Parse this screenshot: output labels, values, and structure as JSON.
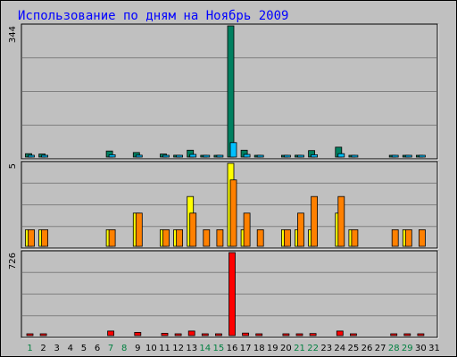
{
  "chart_data": {
    "type": "bar",
    "title": "Использование по дням на Ноябрь 2009",
    "categories": [
      "1",
      "2",
      "3",
      "4",
      "5",
      "6",
      "7",
      "8",
      "9",
      "10",
      "11",
      "12",
      "13",
      "14",
      "15",
      "16",
      "17",
      "18",
      "19",
      "20",
      "21",
      "22",
      "23",
      "24",
      "25",
      "26",
      "27",
      "28",
      "29",
      "30",
      "31"
    ],
    "weekend_days": [
      "1",
      "7",
      "8",
      "14",
      "15",
      "21",
      "22",
      "28",
      "29"
    ],
    "colors": {
      "title": "#0000ff",
      "background": "#c0c0c0",
      "weekday_label": "#000000",
      "weekend_label": "#008040"
    },
    "panels": [
      {
        "id": "top",
        "axis_label": "344",
        "ylim": [
          0,
          344
        ],
        "series": [
          {
            "color": "#008060",
            "values": [
              9,
              8,
              0,
              0,
              0,
              0,
              16,
              0,
              12,
              0,
              8,
              5,
              18,
              4,
              4,
              344,
              18,
              4,
              0,
              4,
              5,
              17,
              0,
              26,
              4,
              0,
              0,
              3,
              4,
              4,
              0
            ]
          },
          {
            "color": "#00c0ff",
            "values": [
              4,
              4,
              0,
              0,
              0,
              0,
              6,
              0,
              5,
              0,
              4,
              3,
              7,
              2,
              2,
              38,
              7,
              2,
              0,
              2,
              3,
              6,
              0,
              9,
              2,
              0,
              0,
              1,
              2,
              2,
              0
            ]
          }
        ]
      },
      {
        "id": "middle",
        "axis_label": "5",
        "ylim": [
          0,
          5
        ],
        "series": [
          {
            "color": "#ffff00",
            "values": [
              1,
              1,
              0,
              0,
              0,
              0,
              1,
              0,
              2,
              0,
              1,
              1,
              3,
              0,
              0,
              5,
              1,
              0,
              0,
              1,
              1,
              1,
              0,
              2,
              1,
              0,
              0,
              0,
              1,
              0,
              0
            ]
          },
          {
            "color": "#ff8000",
            "values": [
              1,
              1,
              0,
              0,
              0,
              0,
              1,
              0,
              2,
              0,
              1,
              1,
              2,
              1,
              1,
              4,
              2,
              1,
              0,
              1,
              2,
              3,
              0,
              3,
              1,
              0,
              0,
              1,
              1,
              1,
              0
            ]
          }
        ]
      },
      {
        "id": "bottom",
        "axis_label": "726",
        "ylim": [
          0,
          726
        ],
        "series": [
          {
            "color": "#ff0000",
            "values": [
              10,
              12,
              0,
              0,
              0,
              0,
              40,
              0,
              28,
              0,
              20,
              14,
              40,
              6,
              6,
              726,
              22,
              6,
              0,
              10,
              12,
              18,
              0,
              40,
              12,
              0,
              0,
              6,
              12,
              6,
              0
            ]
          }
        ]
      }
    ]
  }
}
